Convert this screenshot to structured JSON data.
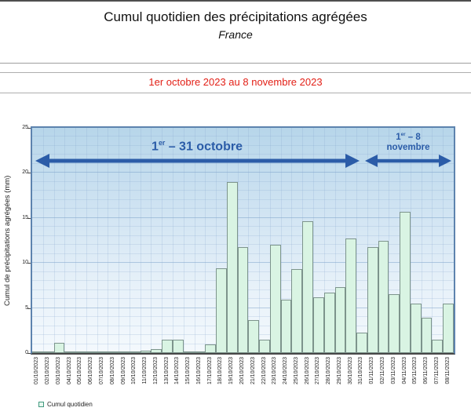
{
  "header": {
    "title": "Cumul quotidien des précipitations agrégées",
    "subtitle": "France"
  },
  "period_banner": {
    "text": "1er octobre 2023 au 8 novembre 2023"
  },
  "annotations": {
    "october": {
      "num": "1",
      "sup": "er",
      "rest": " – 31 octobre"
    },
    "november": {
      "num": "1",
      "sup": "er",
      "rest": " – 8",
      "line2": "novembre"
    }
  },
  "legend": {
    "label": "Cumul quotidien"
  },
  "colors": {
    "accent": "#2b5ca8",
    "period_text": "#e32017",
    "bar_fill": "#d9f4e3",
    "bar_border": "#7d948c",
    "plot_border": "#5d83ae",
    "axis_dark": "#474747",
    "bg_top": "#b7d6ea",
    "bg_bottom": "#f4f9fd",
    "grid_minor": "rgba(132,166,204,0.22)",
    "grid_major": "rgba(110,150,195,0.45)",
    "legend_swatch_fill": "#e8f8ef",
    "legend_swatch_border": "#41997f"
  },
  "chart_data": {
    "type": "bar",
    "title": "Cumul quotidien des précipitations agrégées",
    "subtitle": "France",
    "period": "1er octobre 2023 au 8 novembre 2023",
    "xlabel": "",
    "ylabel": "Cumul de précipitations agrégées (mm)",
    "ylim": [
      0,
      25
    ],
    "yticks": [
      0,
      5,
      10,
      15,
      20,
      25
    ],
    "grid": true,
    "legend_position": "bottom-left",
    "series_name": "Cumul quotidien",
    "annotations": [
      "1er – 31 octobre",
      "1er – 8 novembre"
    ],
    "categories": [
      "01/10/2023",
      "02/10/2023",
      "03/10/2023",
      "04/10/2023",
      "05/10/2023",
      "06/10/2023",
      "07/10/2023",
      "08/10/2023",
      "09/10/2023",
      "10/10/2023",
      "11/10/2023",
      "12/10/2023",
      "13/10/2023",
      "14/10/2023",
      "15/10/2023",
      "16/10/2023",
      "17/10/2023",
      "18/10/2023",
      "19/10/2023",
      "20/10/2023",
      "21/10/2023",
      "22/10/2023",
      "23/10/2023",
      "24/10/2023",
      "25/10/2023",
      "26/10/2023",
      "27/10/2023",
      "28/10/2023",
      "29/10/2023",
      "30/10/2023",
      "31/10/2023",
      "01/11/2023",
      "02/11/2023",
      "03/11/2023",
      "04/11/2023",
      "05/11/2023",
      "06/11/2023",
      "07/11/2023",
      "08/11/2023"
    ],
    "values": [
      0.05,
      0.2,
      1.1,
      0.05,
      0.1,
      0.05,
      0.05,
      0.05,
      0.1,
      0.1,
      0.3,
      0.45,
      1.5,
      1.5,
      0.05,
      0.2,
      1.0,
      9.4,
      19.0,
      11.8,
      3.7,
      1.5,
      12.0,
      5.9,
      9.3,
      14.6,
      6.2,
      6.7,
      7.3,
      12.7,
      2.3,
      11.8,
      12.5,
      6.5,
      15.7,
      5.5,
      3.9,
      1.5,
      5.5
    ]
  }
}
